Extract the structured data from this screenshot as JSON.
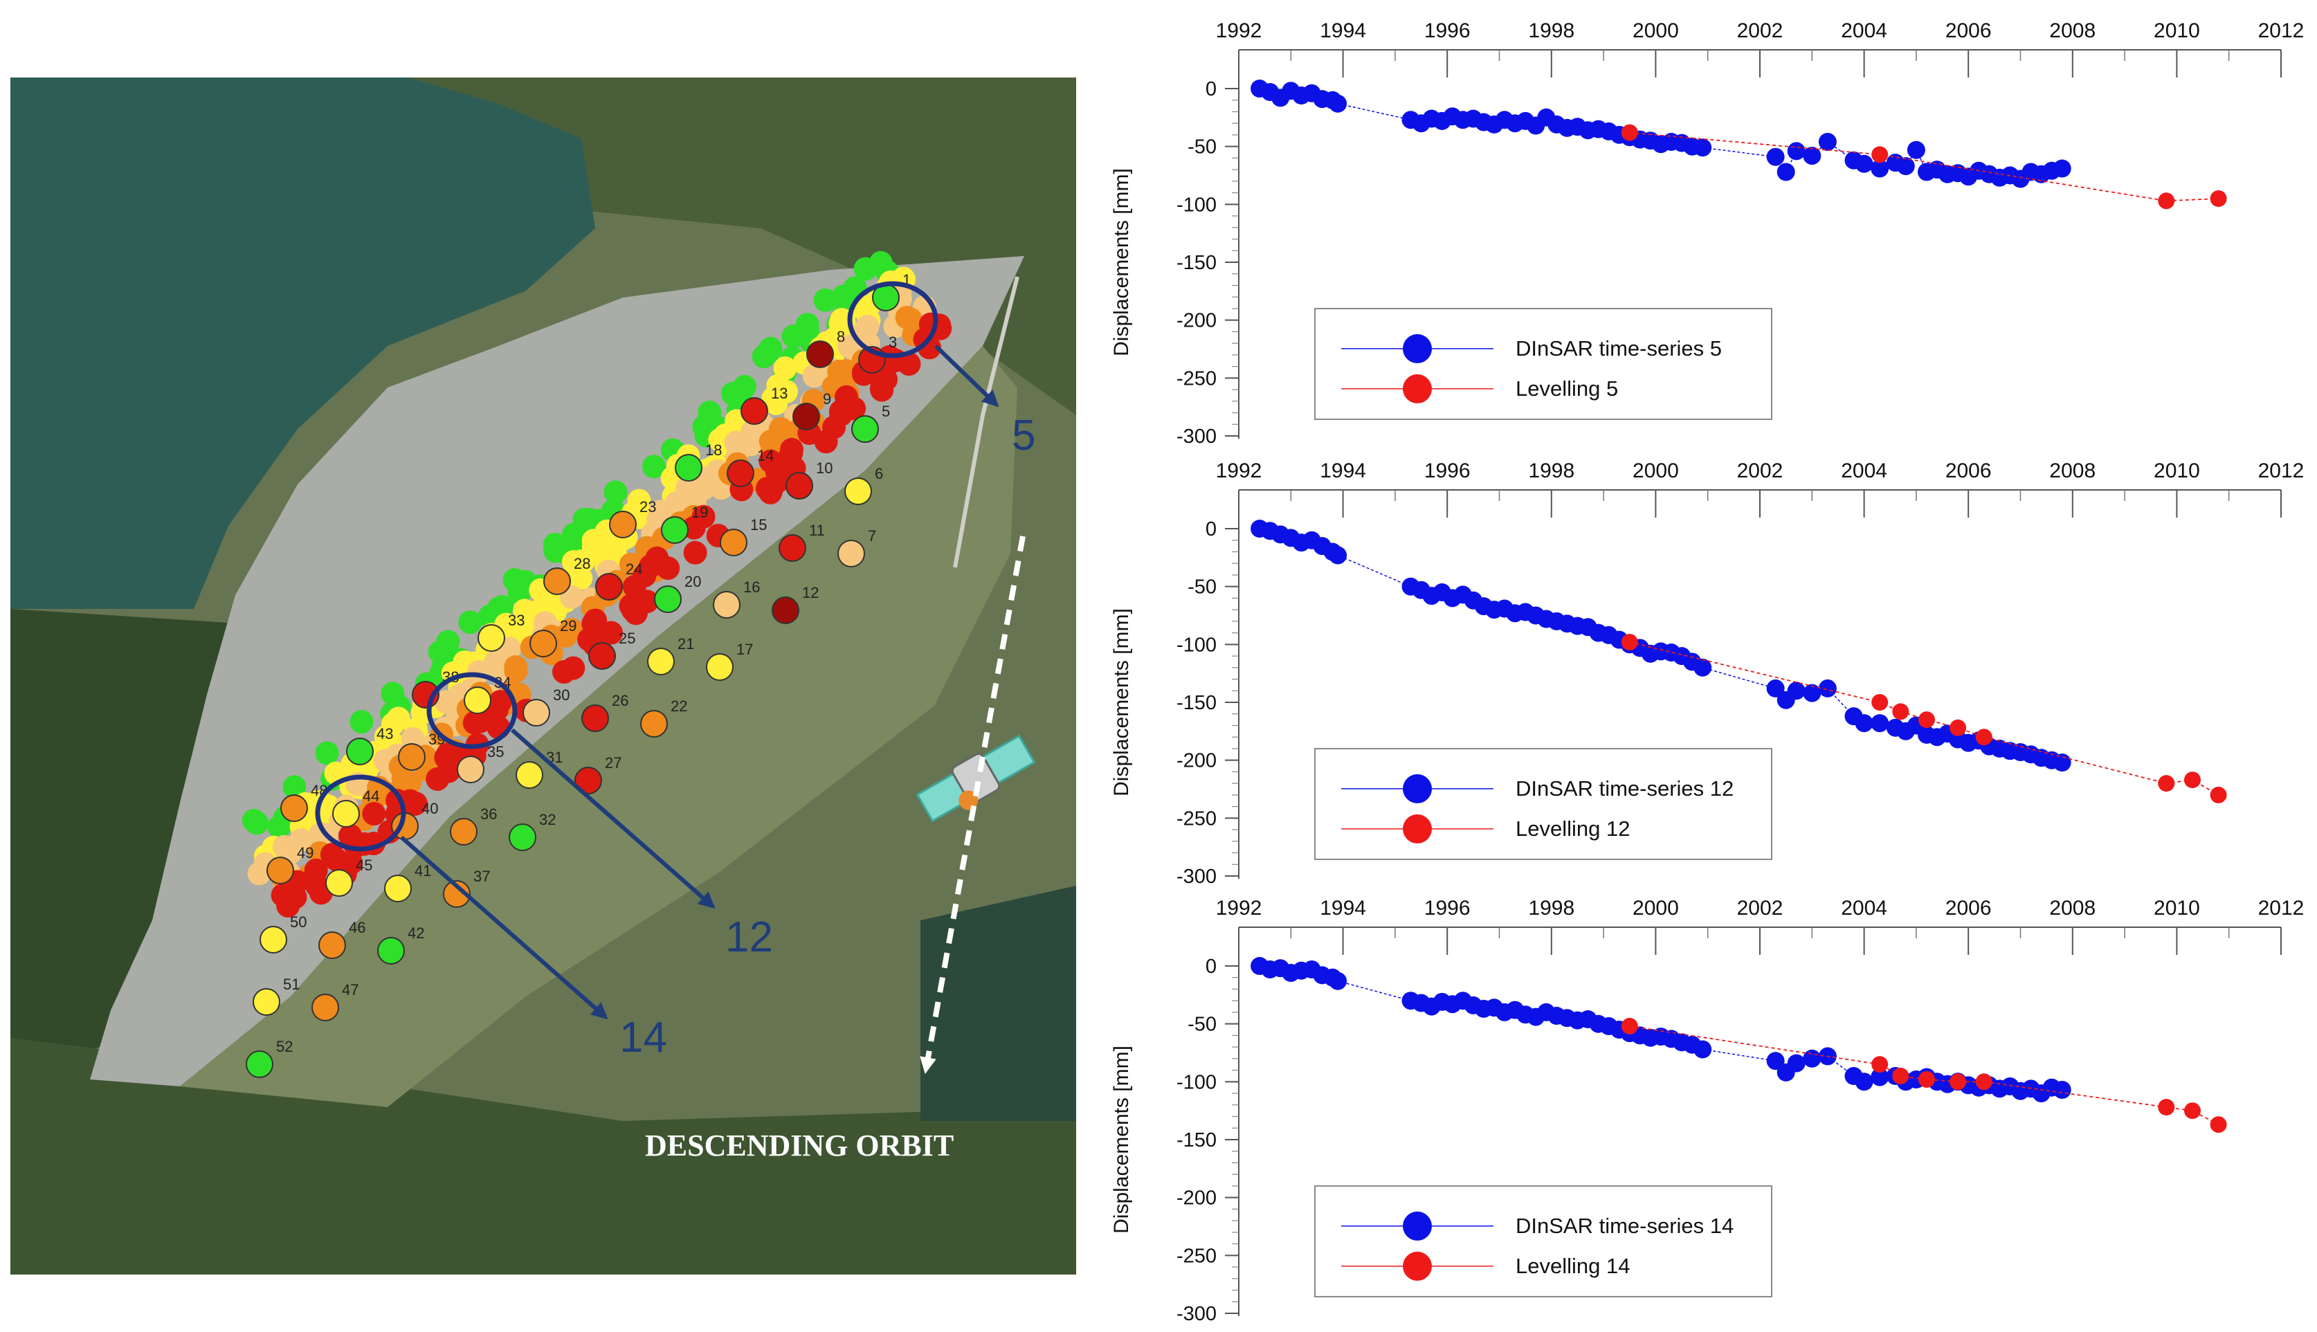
{
  "map": {
    "orbit_label": "DESCENDING ORBIT",
    "highlight_labels": [
      "5",
      "12",
      "14"
    ],
    "colors": {
      "water": "#2e5d56",
      "dam_surface": "#a9aca7",
      "field": "#6d7a53",
      "vegetation": "#3d5530",
      "circle": "#1f3280",
      "arrow": "#1f3d7a",
      "red": "#dd1a12",
      "darkred": "#9c0d0a",
      "orange": "#f08a1c",
      "lightorange": "#f6c77d",
      "yellow": "#ffee3a",
      "green": "#2fe02a"
    },
    "benchmarks": [
      {
        "id": "1",
        "color": "green"
      },
      {
        "id": "3",
        "color": "red"
      },
      {
        "id": "5",
        "color": "green"
      },
      {
        "id": "6",
        "color": "yellow"
      },
      {
        "id": "7",
        "color": "lightorange"
      },
      {
        "id": "8",
        "color": "darkred"
      },
      {
        "id": "9",
        "color": "darkred"
      },
      {
        "id": "10",
        "color": "red"
      },
      {
        "id": "11",
        "color": "red"
      },
      {
        "id": "12",
        "color": "darkred"
      },
      {
        "id": "13",
        "color": "red"
      },
      {
        "id": "14",
        "color": "red"
      },
      {
        "id": "15",
        "color": "orange"
      },
      {
        "id": "16",
        "color": "lightorange"
      },
      {
        "id": "17",
        "color": "yellow"
      },
      {
        "id": "18",
        "color": "green"
      },
      {
        "id": "19",
        "color": "green"
      },
      {
        "id": "20",
        "color": "green"
      },
      {
        "id": "21",
        "color": "yellow"
      },
      {
        "id": "22",
        "color": "orange"
      },
      {
        "id": "23",
        "color": "orange"
      },
      {
        "id": "24",
        "color": "red"
      },
      {
        "id": "25",
        "color": "red"
      },
      {
        "id": "26",
        "color": "red"
      },
      {
        "id": "27",
        "color": "red"
      },
      {
        "id": "28",
        "color": "orange"
      },
      {
        "id": "29",
        "color": "orange"
      },
      {
        "id": "30",
        "color": "lightorange"
      },
      {
        "id": "31",
        "color": "yellow"
      },
      {
        "id": "32",
        "color": "green"
      },
      {
        "id": "33",
        "color": "yellow"
      },
      {
        "id": "34",
        "color": "yellow"
      },
      {
        "id": "35",
        "color": "lightorange"
      },
      {
        "id": "36",
        "color": "orange"
      },
      {
        "id": "37",
        "color": "orange"
      },
      {
        "id": "38",
        "color": "red"
      },
      {
        "id": "39",
        "color": "orange"
      },
      {
        "id": "40",
        "color": "orange"
      },
      {
        "id": "41",
        "color": "yellow"
      },
      {
        "id": "42",
        "color": "green"
      },
      {
        "id": "43",
        "color": "green"
      },
      {
        "id": "44",
        "color": "yellow"
      },
      {
        "id": "45",
        "color": "yellow"
      },
      {
        "id": "46",
        "color": "orange"
      },
      {
        "id": "47",
        "color": "orange"
      },
      {
        "id": "48",
        "color": "orange"
      },
      {
        "id": "49",
        "color": "orange"
      },
      {
        "id": "50",
        "color": "yellow"
      },
      {
        "id": "51",
        "color": "yellow"
      },
      {
        "id": "52",
        "color": "green"
      }
    ]
  },
  "chart_data": [
    {
      "type": "scatter",
      "title": "",
      "xlabel": "",
      "ylabel": "Displacements [mm]",
      "xlim": [
        1992,
        2012
      ],
      "ylim": [
        -300,
        0
      ],
      "xticks": [
        "1992",
        "1994",
        "1996",
        "1998",
        "2000",
        "2002",
        "2004",
        "2006",
        "2008",
        "2010",
        "2012"
      ],
      "yticks": [
        "0",
        "-50",
        "-100",
        "-150",
        "-200",
        "-250",
        "-300"
      ],
      "legend_position": "bottom-left",
      "series": [
        {
          "name": "DInSAR time-series 5",
          "color": "#0c12e6",
          "x": [
            1992.4,
            1992.6,
            1992.8,
            1993.0,
            1993.2,
            1993.4,
            1993.6,
            1993.8,
            1993.9,
            1995.3,
            1995.5,
            1995.7,
            1995.9,
            1996.1,
            1996.3,
            1996.5,
            1996.7,
            1996.9,
            1997.1,
            1997.3,
            1997.5,
            1997.7,
            1997.9,
            1998.1,
            1998.3,
            1998.5,
            1998.7,
            1998.9,
            1999.1,
            1999.3,
            1999.5,
            1999.7,
            1999.9,
            2000.1,
            2000.3,
            2000.5,
            2000.7,
            2000.9,
            2002.3,
            2002.5,
            2002.7,
            2003.0,
            2003.3,
            2003.8,
            2004.0,
            2004.3,
            2004.6,
            2004.8,
            2005.0,
            2005.2,
            2005.4,
            2005.6,
            2005.8,
            2006.0,
            2006.2,
            2006.4,
            2006.6,
            2006.8,
            2007.0,
            2007.2,
            2007.4,
            2007.6,
            2007.8
          ],
          "values": [
            0,
            -3,
            -8,
            -2,
            -6,
            -4,
            -9,
            -10,
            -13,
            -27,
            -30,
            -26,
            -28,
            -24,
            -27,
            -26,
            -29,
            -31,
            -27,
            -30,
            -28,
            -32,
            -25,
            -31,
            -34,
            -33,
            -36,
            -35,
            -37,
            -40,
            -42,
            -44,
            -45,
            -48,
            -46,
            -47,
            -50,
            -51,
            -59,
            -72,
            -54,
            -58,
            -46,
            -62,
            -65,
            -69,
            -64,
            -67,
            -53,
            -72,
            -70,
            -74,
            -73,
            -76,
            -71,
            -74,
            -77,
            -75,
            -78,
            -72,
            -74,
            -71,
            -69
          ]
        },
        {
          "name": "Levelling 5",
          "color": "#ee1a1a",
          "x": [
            1999.5,
            2004.3,
            2009.8,
            2010.8
          ],
          "values": [
            -38,
            -57,
            -97,
            -95
          ]
        }
      ]
    },
    {
      "type": "scatter",
      "title": "",
      "xlabel": "",
      "ylabel": "Displacements [mm]",
      "xlim": [
        1992,
        2012
      ],
      "ylim": [
        -300,
        0
      ],
      "xticks": [
        "1992",
        "1994",
        "1996",
        "1998",
        "2000",
        "2002",
        "2004",
        "2006",
        "2008",
        "2010",
        "2012"
      ],
      "yticks": [
        "0",
        "-50",
        "-100",
        "-150",
        "-200",
        "-250",
        "-300"
      ],
      "legend_position": "bottom-left",
      "series": [
        {
          "name": "DInSAR time-series 12",
          "color": "#0c12e6",
          "x": [
            1992.4,
            1992.6,
            1992.8,
            1993.0,
            1993.2,
            1993.4,
            1993.6,
            1993.8,
            1993.9,
            1995.3,
            1995.5,
            1995.7,
            1995.9,
            1996.1,
            1996.3,
            1996.5,
            1996.7,
            1996.9,
            1997.1,
            1997.3,
            1997.5,
            1997.7,
            1997.9,
            1998.1,
            1998.3,
            1998.5,
            1998.7,
            1998.9,
            1999.1,
            1999.3,
            1999.5,
            1999.7,
            1999.9,
            2000.1,
            2000.3,
            2000.5,
            2000.7,
            2000.9,
            2002.3,
            2002.5,
            2002.7,
            2003.0,
            2003.3,
            2003.8,
            2004.0,
            2004.3,
            2004.6,
            2004.8,
            2005.0,
            2005.2,
            2005.4,
            2005.6,
            2005.8,
            2006.0,
            2006.2,
            2006.4,
            2006.6,
            2006.8,
            2007.0,
            2007.2,
            2007.4,
            2007.6,
            2007.8
          ],
          "values": [
            0,
            -2,
            -5,
            -8,
            -12,
            -10,
            -15,
            -20,
            -23,
            -50,
            -53,
            -58,
            -55,
            -60,
            -57,
            -62,
            -67,
            -70,
            -69,
            -73,
            -72,
            -75,
            -78,
            -80,
            -82,
            -84,
            -85,
            -90,
            -92,
            -96,
            -100,
            -103,
            -108,
            -106,
            -107,
            -110,
            -115,
            -120,
            -138,
            -148,
            -140,
            -142,
            -138,
            -162,
            -168,
            -168,
            -172,
            -175,
            -170,
            -178,
            -180,
            -177,
            -182,
            -185,
            -183,
            -188,
            -190,
            -192,
            -193,
            -195,
            -198,
            -200,
            -202
          ]
        },
        {
          "name": "Levelling 12",
          "color": "#ee1a1a",
          "x": [
            1999.5,
            2004.3,
            2004.7,
            2005.2,
            2005.8,
            2006.3,
            2009.8,
            2010.3,
            2010.8
          ],
          "values": [
            -98,
            -150,
            -158,
            -165,
            -172,
            -180,
            -220,
            -217,
            -230
          ]
        }
      ]
    },
    {
      "type": "scatter",
      "title": "",
      "xlabel": "",
      "ylabel": "Displacements [mm]",
      "xlim": [
        1992,
        2012
      ],
      "ylim": [
        -300,
        0
      ],
      "xticks": [
        "1992",
        "1994",
        "1996",
        "1998",
        "2000",
        "2002",
        "2004",
        "2006",
        "2008",
        "2010",
        "2012"
      ],
      "yticks": [
        "0",
        "-50",
        "-100",
        "-150",
        "-200",
        "-250",
        "-300"
      ],
      "legend_position": "bottom-left",
      "series": [
        {
          "name": "DInSAR time-series 14",
          "color": "#0c12e6",
          "x": [
            1992.4,
            1992.6,
            1992.8,
            1993.0,
            1993.2,
            1993.4,
            1993.6,
            1993.8,
            1993.9,
            1995.3,
            1995.5,
            1995.7,
            1995.9,
            1996.1,
            1996.3,
            1996.5,
            1996.7,
            1996.9,
            1997.1,
            1997.3,
            1997.5,
            1997.7,
            1997.9,
            1998.1,
            1998.3,
            1998.5,
            1998.7,
            1998.9,
            1999.1,
            1999.3,
            1999.5,
            1999.7,
            1999.9,
            2000.1,
            2000.3,
            2000.5,
            2000.7,
            2000.9,
            2002.3,
            2002.5,
            2002.7,
            2003.0,
            2003.3,
            2003.8,
            2004.0,
            2004.3,
            2004.6,
            2004.8,
            2005.0,
            2005.2,
            2005.4,
            2005.6,
            2005.8,
            2006.0,
            2006.2,
            2006.4,
            2006.6,
            2006.8,
            2007.0,
            2007.2,
            2007.4,
            2007.6,
            2007.8
          ],
          "values": [
            0,
            -3,
            -2,
            -6,
            -4,
            -3,
            -8,
            -10,
            -13,
            -30,
            -32,
            -35,
            -31,
            -33,
            -30,
            -34,
            -37,
            -36,
            -40,
            -38,
            -42,
            -44,
            -40,
            -43,
            -45,
            -47,
            -46,
            -50,
            -52,
            -55,
            -58,
            -60,
            -62,
            -61,
            -63,
            -66,
            -68,
            -72,
            -82,
            -92,
            -84,
            -80,
            -78,
            -95,
            -100,
            -96,
            -95,
            -100,
            -98,
            -96,
            -100,
            -102,
            -100,
            -103,
            -105,
            -103,
            -106,
            -104,
            -108,
            -106,
            -110,
            -105,
            -107
          ]
        },
        {
          "name": "Levelling 14",
          "color": "#ee1a1a",
          "x": [
            1999.5,
            2004.3,
            2004.7,
            2005.2,
            2005.8,
            2006.3,
            2009.8,
            2010.3,
            2010.8
          ],
          "values": [
            -52,
            -85,
            -95,
            -98,
            -100,
            -100,
            -122,
            -125,
            -137
          ]
        }
      ]
    }
  ]
}
